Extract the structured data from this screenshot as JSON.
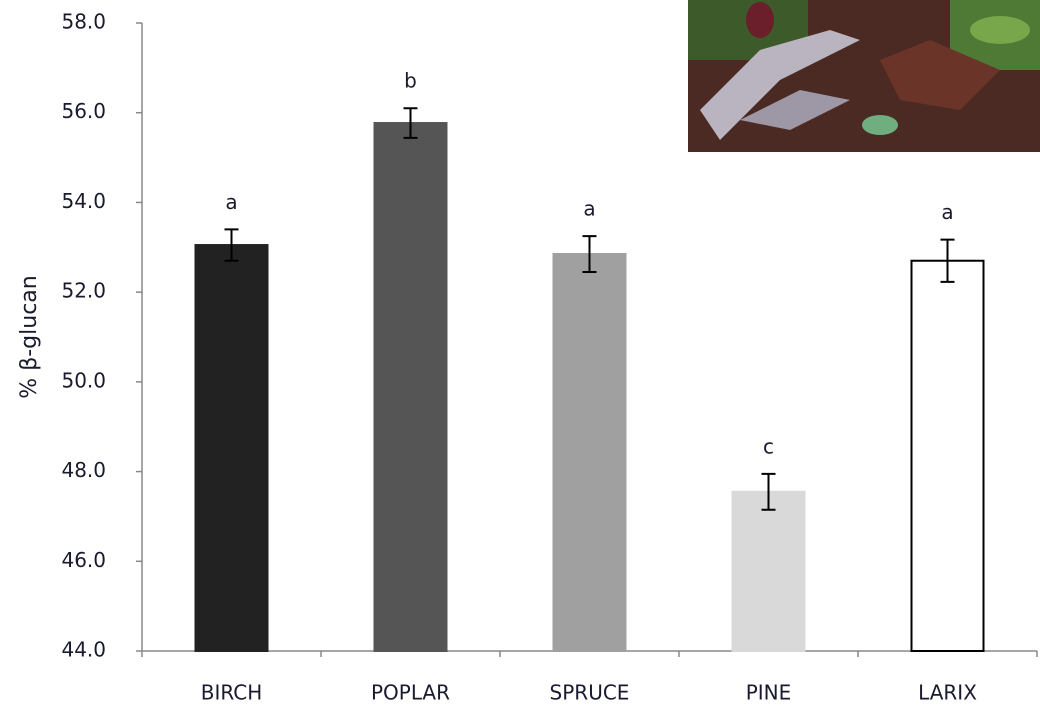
{
  "chart_data": {
    "type": "bar",
    "y_label": "% β-glucan",
    "categories": [
      "BIRCH",
      "POPLAR",
      "SPRUCE",
      "PINE",
      "LARIX"
    ],
    "values": [
      53.05,
      55.77,
      52.85,
      47.55,
      52.7
    ],
    "errors": [
      0.35,
      0.33,
      0.4,
      0.4,
      0.47
    ],
    "letters": [
      "a",
      "b",
      "a",
      "c",
      "a"
    ],
    "colors": [
      "#222222",
      "#555555",
      "#a0a0a0",
      "#d9d9d9",
      "#ffffff"
    ],
    "ylim": [
      44,
      58
    ],
    "yticks": [
      {
        "value": 44,
        "label": "44.0"
      },
      {
        "value": 46,
        "label": "46.0"
      },
      {
        "value": 48,
        "label": "48.0"
      },
      {
        "value": 50,
        "label": "50.0"
      },
      {
        "value": 52,
        "label": "52.0"
      },
      {
        "value": 54,
        "label": "54.0"
      },
      {
        "value": 56,
        "label": "56.0"
      },
      {
        "value": 58,
        "label": "58.0"
      }
    ]
  }
}
